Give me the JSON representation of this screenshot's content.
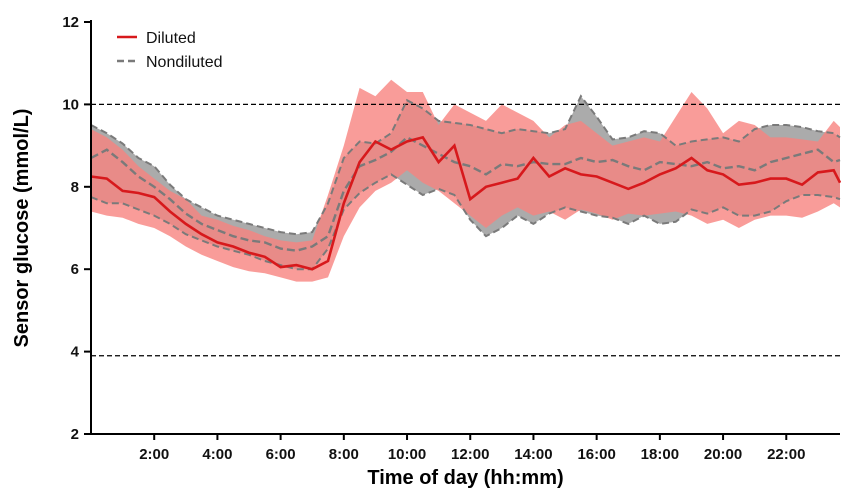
{
  "chart_data": {
    "type": "line",
    "xlabel": "Time of day (hh:mm)",
    "ylabel": "Sensor glucose (mmol/L)",
    "xlim": [
      0,
      23.7
    ],
    "ylim": [
      2,
      12
    ],
    "x_ticks": [
      {
        "value": 2,
        "label": "2:00"
      },
      {
        "value": 4,
        "label": "4:00"
      },
      {
        "value": 6,
        "label": "6:00"
      },
      {
        "value": 8,
        "label": "8:00"
      },
      {
        "value": 10,
        "label": "10:00"
      },
      {
        "value": 12,
        "label": "12:00"
      },
      {
        "value": 14,
        "label": "14:00"
      },
      {
        "value": 16,
        "label": "16:00"
      },
      {
        "value": 18,
        "label": "18:00"
      },
      {
        "value": 20,
        "label": "20:00"
      },
      {
        "value": 22,
        "label": "22:00"
      }
    ],
    "y_ticks": [
      {
        "value": 2,
        "label": "2"
      },
      {
        "value": 4,
        "label": "4"
      },
      {
        "value": 6,
        "label": "6"
      },
      {
        "value": 8,
        "label": "8"
      },
      {
        "value": 10,
        "label": "10"
      },
      {
        "value": 12,
        "label": "12"
      }
    ],
    "reference_lines": [
      3.9,
      10.0
    ],
    "legend_position": "top-left",
    "grid": false,
    "x": [
      0,
      0.5,
      1,
      1.5,
      2,
      2.5,
      3,
      3.5,
      4,
      4.5,
      5,
      5.5,
      6,
      6.5,
      7,
      7.5,
      8,
      8.5,
      9,
      9.5,
      10,
      10.5,
      11,
      11.5,
      12,
      12.5,
      13,
      13.5,
      14,
      14.5,
      15,
      15.5,
      16,
      16.5,
      17,
      17.5,
      18,
      18.5,
      19,
      19.5,
      20,
      20.5,
      21,
      21.5,
      22,
      22.5,
      23,
      23.5,
      23.7
    ],
    "series": [
      {
        "name": "Diluted",
        "color": "#d7191c",
        "band_color": "#f8837f",
        "style": "solid",
        "median": [
          8.25,
          8.2,
          7.9,
          7.85,
          7.75,
          7.4,
          7.1,
          6.85,
          6.65,
          6.55,
          6.4,
          6.3,
          6.05,
          6.1,
          6.0,
          6.2,
          7.6,
          8.6,
          9.1,
          8.9,
          9.1,
          9.2,
          8.6,
          9.0,
          7.7,
          8.0,
          8.1,
          8.2,
          8.7,
          8.25,
          8.45,
          8.3,
          8.25,
          8.1,
          7.95,
          8.1,
          8.3,
          8.45,
          8.7,
          8.4,
          8.3,
          8.05,
          8.1,
          8.2,
          8.2,
          8.05,
          8.35,
          8.4,
          8.1
        ],
        "q1": [
          7.4,
          7.3,
          7.25,
          7.1,
          7.0,
          6.8,
          6.55,
          6.35,
          6.2,
          6.05,
          5.95,
          5.9,
          5.8,
          5.7,
          5.7,
          5.8,
          6.8,
          7.5,
          7.9,
          8.1,
          8.4,
          8.1,
          7.9,
          7.6,
          7.3,
          7.0,
          7.3,
          7.5,
          7.3,
          7.4,
          7.2,
          7.45,
          7.35,
          7.2,
          7.35,
          7.3,
          7.35,
          7.4,
          7.3,
          7.1,
          7.2,
          7.0,
          7.2,
          7.3,
          7.3,
          7.25,
          7.4,
          7.6,
          7.5
        ],
        "q3": [
          9.4,
          9.2,
          8.9,
          8.5,
          8.2,
          7.9,
          7.7,
          7.3,
          7.2,
          7.05,
          6.95,
          6.8,
          6.7,
          6.65,
          6.7,
          7.8,
          9.0,
          10.4,
          10.2,
          10.6,
          10.3,
          10.3,
          9.5,
          10.0,
          9.8,
          9.6,
          10.0,
          9.8,
          9.6,
          9.2,
          9.5,
          9.6,
          9.3,
          9.0,
          9.1,
          9.2,
          9.1,
          9.7,
          10.3,
          9.9,
          9.3,
          9.6,
          9.5,
          9.2,
          9.2,
          9.15,
          9.1,
          9.6,
          9.45
        ]
      },
      {
        "name": "Nondiluted",
        "color": "#7a7a7a",
        "band_color": "#a6a6a6",
        "style": "dashed",
        "median": [
          8.7,
          8.9,
          8.6,
          8.25,
          8.0,
          7.7,
          7.35,
          7.1,
          6.95,
          6.8,
          6.7,
          6.65,
          6.5,
          6.45,
          6.55,
          6.8,
          7.9,
          8.5,
          8.65,
          8.85,
          9.2,
          9.0,
          8.8,
          8.6,
          8.5,
          8.3,
          8.55,
          8.5,
          8.6,
          8.55,
          8.55,
          8.7,
          8.6,
          8.65,
          8.5,
          8.4,
          8.6,
          8.55,
          8.5,
          8.6,
          8.45,
          8.5,
          8.4,
          8.6,
          8.7,
          8.8,
          8.9,
          8.6,
          8.65
        ],
        "q1": [
          7.75,
          7.6,
          7.6,
          7.45,
          7.3,
          7.1,
          6.85,
          6.7,
          6.55,
          6.45,
          6.35,
          6.2,
          6.1,
          6.0,
          6.0,
          6.5,
          7.45,
          7.85,
          8.1,
          8.3,
          8.05,
          7.8,
          7.95,
          7.8,
          7.2,
          6.8,
          7.0,
          7.3,
          7.1,
          7.35,
          7.5,
          7.4,
          7.3,
          7.25,
          7.1,
          7.3,
          7.1,
          7.15,
          7.45,
          7.35,
          7.5,
          7.3,
          7.3,
          7.4,
          7.65,
          7.8,
          7.8,
          7.75,
          7.7
        ],
        "q3": [
          9.5,
          9.3,
          9.05,
          8.7,
          8.5,
          8.05,
          7.7,
          7.5,
          7.3,
          7.2,
          7.1,
          7.0,
          6.9,
          6.85,
          6.9,
          7.6,
          8.7,
          9.1,
          9.05,
          9.3,
          10.1,
          9.9,
          9.6,
          9.55,
          9.5,
          9.4,
          9.3,
          9.4,
          9.35,
          9.3,
          9.4,
          10.2,
          9.7,
          9.15,
          9.2,
          9.35,
          9.3,
          9.0,
          9.1,
          9.15,
          9.2,
          9.1,
          9.4,
          9.5,
          9.5,
          9.45,
          9.35,
          9.3,
          9.2
        ]
      }
    ]
  }
}
